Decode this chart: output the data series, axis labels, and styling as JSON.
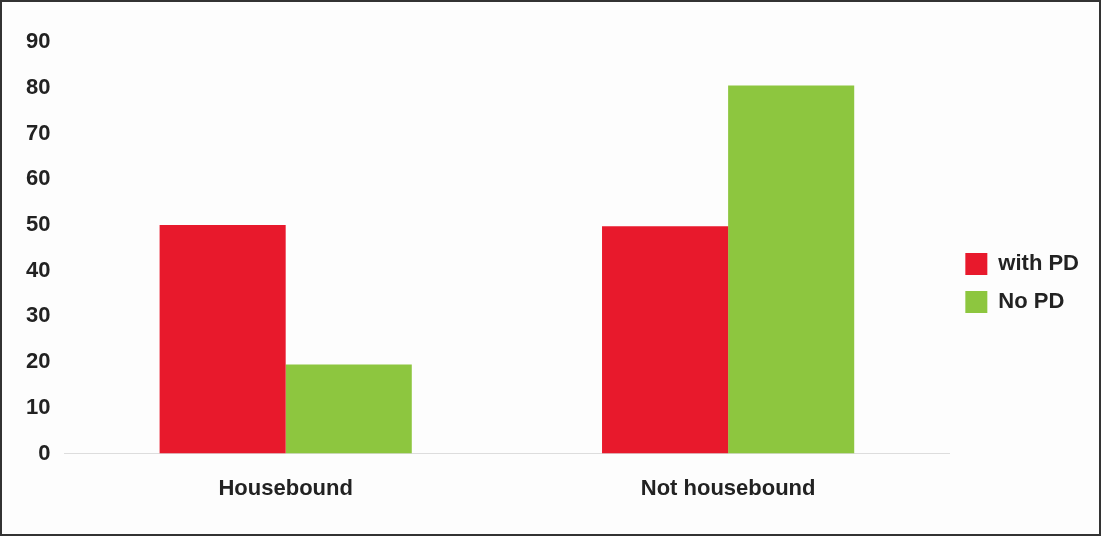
{
  "chart_data": {
    "type": "bar",
    "categories": [
      "Housebound",
      "Not housebound"
    ],
    "series": [
      {
        "name": "with PD",
        "color": "#e8192c",
        "values": [
          50,
          49.7
        ]
      },
      {
        "name": "No PD",
        "color": "#8dc63f",
        "values": [
          19.5,
          80.5
        ]
      }
    ],
    "ylim": [
      0,
      90
    ],
    "yticks": [
      0,
      10,
      20,
      30,
      40,
      50,
      60,
      70,
      80,
      90
    ],
    "grid": false,
    "legend": "right"
  }
}
